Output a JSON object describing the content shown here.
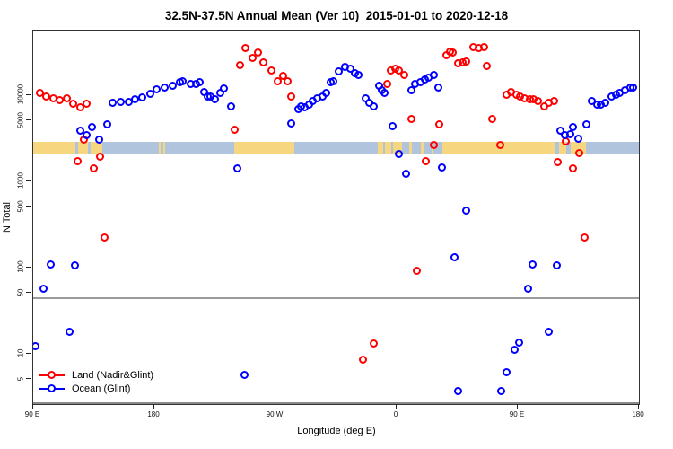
{
  "title": "32.5N-37.5N Annual Mean (Ver 10)  2015-01-01 to 2020-12-18",
  "chart_data": {
    "type": "scatter",
    "title": "32.5N-37.5N Annual Mean (Ver 10)  2015-01-01 to 2020-12-18",
    "xlabel": "Longitude (deg E)",
    "ylabel": "N Total",
    "x_axis": {
      "range": [
        90,
        540
      ],
      "ticks": [
        90,
        180,
        270,
        360,
        450,
        540
      ],
      "tick_labels": [
        "90 E",
        "180",
        "90 W",
        "0",
        "90 E",
        "180"
      ],
      "note": "longitude axis wraps: 90E through 180, 90W, 0, 90E to 180"
    },
    "y_axis": {
      "scale": "log",
      "ticks": [
        10000,
        5000,
        1000,
        500,
        100,
        50,
        10,
        5
      ],
      "tick_labels": [
        "10000",
        "5000",
        "1000",
        "500",
        "100",
        "50",
        "10",
        "5"
      ],
      "range": [
        2.7,
        56000
      ]
    },
    "grid": false,
    "threshold_line_n": 45,
    "legend": [
      {
        "label": "Land (Nadir&Glint)",
        "color": "#ff0000"
      },
      {
        "label": "Ocean (Glint)",
        "color": "#0000ff"
      }
    ],
    "coverage_band": {
      "n_top": 2870,
      "n_bottom": 2100,
      "land_color": "#f6d780",
      "ocean_color": "#b0c4de",
      "segments": [
        {
          "from": 90,
          "to": 121.5,
          "type": "land"
        },
        {
          "from": 121.5,
          "to": 123.5,
          "type": "ocean"
        },
        {
          "from": 123.5,
          "to": 130.5,
          "type": "land"
        },
        {
          "from": 130.5,
          "to": 132.5,
          "type": "ocean"
        },
        {
          "from": 132.5,
          "to": 141,
          "type": "land"
        },
        {
          "from": 141,
          "to": 183,
          "type": "ocean"
        },
        {
          "from": 183,
          "to": 184.5,
          "type": "land"
        },
        {
          "from": 184.5,
          "to": 186.5,
          "type": "ocean"
        },
        {
          "from": 186.5,
          "to": 188,
          "type": "land"
        },
        {
          "from": 188,
          "to": 239,
          "type": "ocean"
        },
        {
          "from": 239,
          "to": 284,
          "type": "land"
        },
        {
          "from": 284,
          "to": 346,
          "type": "ocean"
        },
        {
          "from": 346,
          "to": 350,
          "type": "land"
        },
        {
          "from": 350,
          "to": 351.5,
          "type": "ocean"
        },
        {
          "from": 351.5,
          "to": 356,
          "type": "land"
        },
        {
          "from": 356,
          "to": 357.5,
          "type": "ocean"
        },
        {
          "from": 357.5,
          "to": 364,
          "type": "land"
        },
        {
          "from": 364,
          "to": 369.5,
          "type": "ocean"
        },
        {
          "from": 369.5,
          "to": 371,
          "type": "land"
        },
        {
          "from": 371,
          "to": 378,
          "type": "ocean"
        },
        {
          "from": 378,
          "to": 380,
          "type": "land"
        },
        {
          "from": 380,
          "to": 386,
          "type": "ocean"
        },
        {
          "from": 386,
          "to": 387.5,
          "type": "land"
        },
        {
          "from": 387.5,
          "to": 394,
          "type": "ocean"
        },
        {
          "from": 394,
          "to": 478,
          "type": "land"
        },
        {
          "from": 478,
          "to": 480.5,
          "type": "ocean"
        },
        {
          "from": 480.5,
          "to": 486,
          "type": "land"
        },
        {
          "from": 486,
          "to": 489,
          "type": "ocean"
        },
        {
          "from": 489,
          "to": 500.5,
          "type": "land"
        },
        {
          "from": 500.5,
          "to": 540,
          "type": "ocean"
        }
      ]
    },
    "series": [
      {
        "name": "Land (Nadir&Glint)",
        "color": "#ff0000",
        "points": [
          [
            95,
            10500
          ],
          [
            100,
            9500
          ],
          [
            105,
            9000
          ],
          [
            110,
            8600
          ],
          [
            115,
            9000
          ],
          [
            120,
            7800
          ],
          [
            125,
            7100
          ],
          [
            130,
            7800
          ],
          [
            123,
            1700
          ],
          [
            128,
            3000
          ],
          [
            135,
            1400
          ],
          [
            140,
            1900
          ],
          [
            143,
            220
          ],
          [
            240,
            3900
          ],
          [
            244,
            22000
          ],
          [
            248,
            35000
          ],
          [
            253,
            27000
          ],
          [
            257,
            31000
          ],
          [
            261,
            24000
          ],
          [
            267,
            19000
          ],
          [
            272,
            14500
          ],
          [
            276,
            16500
          ],
          [
            279,
            14500
          ],
          [
            282,
            9600
          ],
          [
            335,
            8.5
          ],
          [
            343,
            13
          ],
          [
            353,
            13500
          ],
          [
            356,
            19000
          ],
          [
            359,
            20000
          ],
          [
            362,
            19000
          ],
          [
            366,
            17000
          ],
          [
            371,
            5300
          ],
          [
            375,
            92
          ],
          [
            382,
            1700
          ],
          [
            388,
            2600
          ],
          [
            392,
            4500
          ],
          [
            397,
            29000
          ],
          [
            400,
            32000
          ],
          [
            402,
            31000
          ],
          [
            406,
            23000
          ],
          [
            409,
            23500
          ],
          [
            412,
            24500
          ],
          [
            417,
            36000
          ],
          [
            421,
            35000
          ],
          [
            425,
            36000
          ],
          [
            427,
            21500
          ],
          [
            431,
            5300
          ],
          [
            437,
            2600
          ],
          [
            442,
            10000
          ],
          [
            445,
            10800
          ],
          [
            449,
            10000
          ],
          [
            452,
            9600
          ],
          [
            455,
            9200
          ],
          [
            459,
            8800
          ],
          [
            462,
            8800
          ],
          [
            465,
            8400
          ],
          [
            470,
            7300
          ],
          [
            473,
            8100
          ],
          [
            477,
            8400
          ],
          [
            480,
            1650
          ],
          [
            486,
            2900
          ],
          [
            491,
            1400
          ],
          [
            496,
            2100
          ],
          [
            500,
            220
          ]
        ]
      },
      {
        "name": "Ocean (Glint)",
        "color": "#0000ff",
        "points": [
          [
            92,
            12
          ],
          [
            98,
            57
          ],
          [
            103,
            107
          ],
          [
            117,
            18
          ],
          [
            121,
            105
          ],
          [
            125,
            3800
          ],
          [
            130,
            3400
          ],
          [
            134,
            4200
          ],
          [
            139,
            3000
          ],
          [
            145,
            4500
          ],
          [
            149,
            8000
          ],
          [
            155,
            8300
          ],
          [
            161,
            8300
          ],
          [
            166,
            8900
          ],
          [
            171,
            9300
          ],
          [
            177,
            10200
          ],
          [
            182,
            11600
          ],
          [
            188,
            12200
          ],
          [
            194,
            12800
          ],
          [
            199,
            13900
          ],
          [
            201,
            14500
          ],
          [
            207,
            13400
          ],
          [
            211,
            13400
          ],
          [
            214,
            14000
          ],
          [
            217,
            10900
          ],
          [
            220,
            9600
          ],
          [
            222,
            9600
          ],
          [
            225,
            8800
          ],
          [
            229,
            10500
          ],
          [
            232,
            11900
          ],
          [
            237,
            7300
          ],
          [
            242,
            1400
          ],
          [
            247,
            5.7
          ],
          [
            282,
            4700
          ],
          [
            287,
            6900
          ],
          [
            289,
            7300
          ],
          [
            292,
            7100
          ],
          [
            295,
            7700
          ],
          [
            298,
            8400
          ],
          [
            301,
            9200
          ],
          [
            305,
            9600
          ],
          [
            308,
            10400
          ],
          [
            311,
            14000
          ],
          [
            313,
            14500
          ],
          [
            317,
            18700
          ],
          [
            322,
            21000
          ],
          [
            326,
            20000
          ],
          [
            329,
            18000
          ],
          [
            332,
            17000
          ],
          [
            337,
            9200
          ],
          [
            340,
            8100
          ],
          [
            343,
            7300
          ],
          [
            347,
            12800
          ],
          [
            349,
            11300
          ],
          [
            351,
            10400
          ],
          [
            357,
            4300
          ],
          [
            362,
            2050
          ],
          [
            367,
            1200
          ],
          [
            371,
            11300
          ],
          [
            374,
            13400
          ],
          [
            378,
            14000
          ],
          [
            381,
            15200
          ],
          [
            384,
            15800
          ],
          [
            388,
            17000
          ],
          [
            391,
            12200
          ],
          [
            394,
            1450
          ],
          [
            403,
            130
          ],
          [
            406,
            3.7
          ],
          [
            412,
            450
          ],
          [
            438,
            3.7
          ],
          [
            442,
            6
          ],
          [
            448,
            11
          ],
          [
            451,
            13.5
          ],
          [
            458,
            57
          ],
          [
            461,
            107
          ],
          [
            473,
            18
          ],
          [
            479,
            105
          ],
          [
            482,
            3800
          ],
          [
            485,
            3400
          ],
          [
            489,
            3500
          ],
          [
            491,
            4200
          ],
          [
            495,
            3100
          ],
          [
            501,
            4500
          ],
          [
            505,
            8400
          ],
          [
            509,
            7700
          ],
          [
            512,
            7700
          ],
          [
            515,
            8100
          ],
          [
            520,
            9600
          ],
          [
            523,
            10000
          ],
          [
            526,
            10400
          ],
          [
            530,
            11300
          ],
          [
            534,
            12200
          ],
          [
            536,
            12200
          ]
        ]
      }
    ]
  }
}
